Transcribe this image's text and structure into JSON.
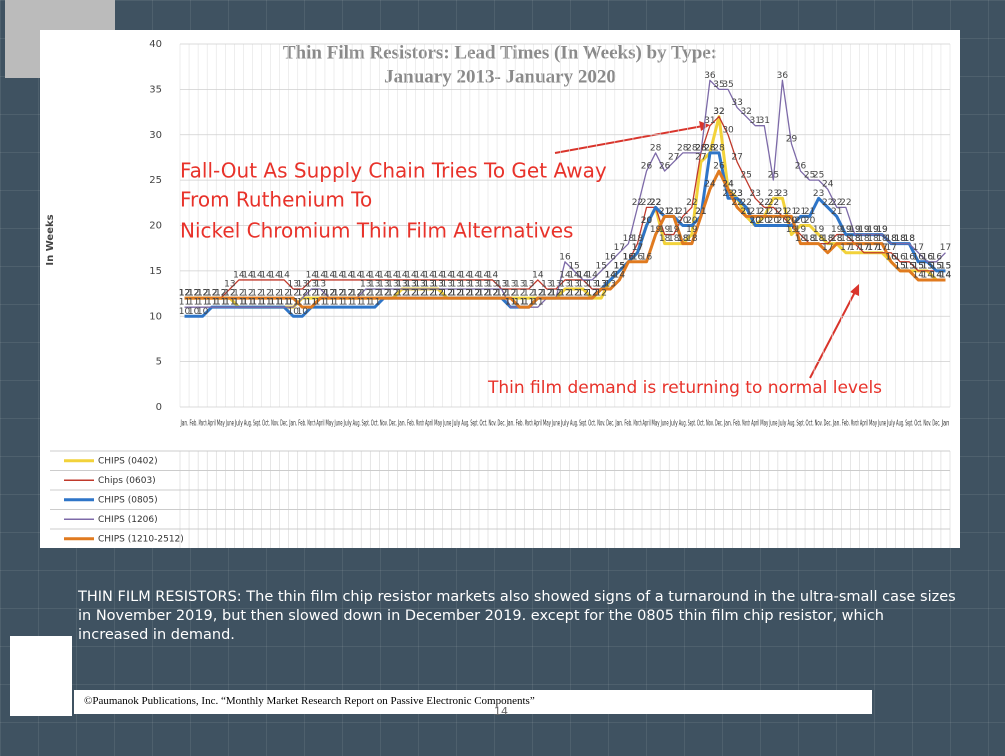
{
  "chart_data": {
    "type": "line",
    "title": "Thin Film Resistors: Lead Times (In Weeks) by Type:",
    "subtitle": "January 2013- January 2020",
    "y_label": "In Weeks",
    "annotations": [
      "Fall-Out As Supply Chain Tries To Get Away",
      "From Ruthenium To",
      "Nickel Chromium Thin Film Alternatives",
      "Thin film demand is returning to normal levels"
    ],
    "ylim": [
      0,
      40
    ],
    "yticks": [
      0,
      5,
      10,
      15,
      20,
      25,
      30,
      35,
      40
    ],
    "grid": true,
    "categories": [
      "Jan.",
      "Feb.",
      "March",
      "April",
      "May",
      "June",
      "July",
      "Aug.",
      "Sept.",
      "Oct.",
      "Nov.",
      "Dec.",
      "Jan.",
      "Feb.",
      "March",
      "April",
      "May",
      "June",
      "July",
      "Aug.",
      "Sept.",
      "Oct.",
      "Nov.",
      "Dec.",
      "Jan.",
      "Feb.",
      "March",
      "April",
      "May",
      "June",
      "July",
      "Aug.",
      "Sept.",
      "Oct.",
      "Nov.",
      "Dec.",
      "Jan.",
      "Feb.",
      "March",
      "April",
      "May",
      "June",
      "July",
      "Aug.",
      "Sept.",
      "Oct.",
      "Nov.",
      "Dec.",
      "Jan.",
      "Feb.",
      "March",
      "April",
      "May",
      "June",
      "July",
      "Aug.",
      "Sept.",
      "Oct.",
      "Nov.",
      "Dec.",
      "Jan.",
      "Feb.",
      "March",
      "April",
      "May",
      "June",
      "July",
      "Aug.",
      "Sept.",
      "Oct.",
      "Nov.",
      "Dec.",
      "Jan.",
      "Feb.",
      "March",
      "April",
      "May",
      "June",
      "July",
      "Aug.",
      "Sept.",
      "Oct.",
      "Nov.",
      "Dec.",
      "Jan"
    ],
    "series": [
      {
        "name": "CHIPS (0402)",
        "color": "#f2d23a",
        "values": [
          12,
          12,
          12,
          12,
          12,
          12,
          11,
          11,
          11,
          11,
          11,
          11,
          11,
          12,
          12,
          12,
          12,
          12,
          12,
          12,
          12,
          12,
          12,
          12,
          13,
          13,
          13,
          13,
          13,
          12,
          12,
          12,
          12,
          12,
          12,
          12,
          12,
          12,
          12,
          12,
          12,
          12,
          13,
          13,
          13,
          12,
          12,
          14,
          15,
          16,
          17,
          20,
          22,
          18,
          18,
          18,
          19,
          27,
          28,
          32,
          24,
          23,
          21,
          20,
          21,
          23,
          23,
          19,
          20,
          20,
          19,
          18,
          18,
          17,
          17,
          17,
          17,
          17,
          16,
          15,
          15,
          15,
          15,
          14,
          14
        ]
      },
      {
        "name": "Chips (0603)",
        "color": "#c0392b",
        "values": [
          12,
          12,
          12,
          12,
          12,
          13,
          14,
          14,
          14,
          14,
          14,
          14,
          13,
          13,
          14,
          14,
          14,
          14,
          14,
          14,
          14,
          14,
          14,
          14,
          14,
          14,
          14,
          14,
          14,
          14,
          14,
          14,
          14,
          14,
          14,
          13,
          13,
          13,
          13,
          14,
          13,
          13,
          14,
          14,
          14,
          13,
          13,
          14,
          15,
          16,
          18,
          22,
          22,
          19,
          19,
          21,
          22,
          28,
          31,
          32,
          30,
          27,
          25,
          23,
          22,
          22,
          21,
          20,
          19,
          18,
          18,
          18,
          19,
          19,
          18,
          17,
          17,
          17,
          17,
          16,
          16,
          15,
          15,
          15,
          15
        ]
      },
      {
        "name": "CHIPS (0805)",
        "color": "#2e75c8",
        "values": [
          10,
          10,
          10,
          11,
          11,
          11,
          11,
          11,
          11,
          11,
          11,
          11,
          10,
          10,
          11,
          11,
          11,
          11,
          11,
          11,
          11,
          11,
          12,
          12,
          12,
          12,
          12,
          12,
          12,
          12,
          12,
          12,
          12,
          12,
          12,
          12,
          11,
          11,
          11,
          12,
          12,
          12,
          12,
          12,
          12,
          12,
          13,
          14,
          15,
          16,
          17,
          20,
          22,
          21,
          21,
          20,
          20,
          21,
          28,
          28,
          23,
          23,
          22,
          20,
          20,
          20,
          20,
          20,
          21,
          21,
          23,
          22,
          21,
          19,
          19,
          19,
          19,
          19,
          18,
          18,
          18,
          16,
          16,
          15,
          15
        ]
      },
      {
        "name": "CHIPS (1206)",
        "color": "#7d6aa8",
        "values": [
          11,
          11,
          11,
          11,
          11,
          11,
          11,
          11,
          11,
          11,
          11,
          11,
          11,
          12,
          13,
          13,
          12,
          12,
          12,
          12,
          13,
          13,
          13,
          13,
          13,
          13,
          13,
          13,
          13,
          13,
          13,
          13,
          13,
          13,
          13,
          13,
          11,
          11,
          11,
          11,
          12,
          12,
          16,
          15,
          14,
          14,
          15,
          16,
          17,
          18,
          22,
          26,
          28,
          26,
          27,
          28,
          28,
          28,
          36,
          35,
          35,
          33,
          32,
          31,
          31,
          25,
          36,
          29,
          26,
          25,
          25,
          24,
          22,
          22,
          19,
          19,
          19,
          19,
          18,
          18,
          18,
          17,
          16,
          16,
          17
        ]
      },
      {
        "name": "CHIPS (1210-2512)",
        "color": "#e07a1f",
        "values": [
          12,
          12,
          12,
          12,
          12,
          12,
          12,
          12,
          12,
          12,
          12,
          12,
          12,
          11,
          11,
          12,
          12,
          12,
          12,
          12,
          12,
          12,
          12,
          12,
          12,
          12,
          12,
          12,
          12,
          12,
          12,
          12,
          12,
          12,
          12,
          12,
          12,
          11,
          11,
          12,
          12,
          12,
          12,
          12,
          12,
          12,
          13,
          13,
          14,
          16,
          16,
          16,
          19,
          21,
          21,
          18,
          18,
          21,
          24,
          26,
          24,
          22,
          21,
          21,
          21,
          21,
          21,
          21,
          18,
          18,
          18,
          17,
          18,
          18,
          18,
          18,
          18,
          18,
          16,
          15,
          15,
          14,
          14,
          14,
          14
        ]
      }
    ]
  },
  "body_text": "THIN FILM RESISTORS: The thin film chip resistor markets also showed signs of a turnaround in the ultra-small case sizes in November 2019, but then slowed down in December 2019. except for the 0805 thin film chip resistor, which increased in demand.",
  "footer": "©Paumanok Publications, Inc. “Monthly Market Research Report on Passive Electronic Components”",
  "page_number": "14"
}
